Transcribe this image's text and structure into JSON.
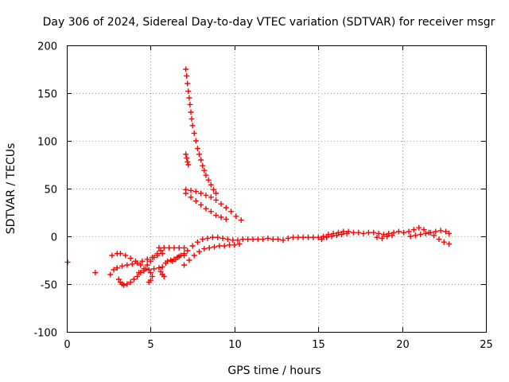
{
  "chart_data": {
    "type": "scatter",
    "title": "Day 306 of 2024, Sidereal Day-to-day VTEC variation (SDTVAR) for receiver msgr",
    "xlabel": "GPS time / hours",
    "ylabel": "SDTVAR / TECUs",
    "xlim": [
      0,
      25
    ],
    "ylim": [
      -100,
      200
    ],
    "xticks": [
      "0",
      "5",
      "10",
      "15",
      "20",
      "25"
    ],
    "yticks": [
      "-100",
      "-50",
      "0",
      "50",
      "100",
      "150",
      "200"
    ],
    "grid": true,
    "marker": "+",
    "series": [
      {
        "name": "SDTVAR",
        "color": "#ff0000",
        "points": [
          [
            0.05,
            -27
          ],
          [
            1.7,
            -38
          ],
          [
            2.6,
            -40
          ],
          [
            2.8,
            -35
          ],
          [
            2.7,
            -20
          ],
          [
            3.0,
            -18
          ],
          [
            3.1,
            -45
          ],
          [
            3.2,
            -48
          ],
          [
            3.3,
            -50
          ],
          [
            3.4,
            -51
          ],
          [
            3.6,
            -50
          ],
          [
            3.8,
            -48
          ],
          [
            4.0,
            -45
          ],
          [
            4.2,
            -42
          ],
          [
            4.4,
            -38
          ],
          [
            4.6,
            -34
          ],
          [
            4.8,
            -30
          ],
          [
            5.0,
            -26
          ],
          [
            5.2,
            -22
          ],
          [
            5.4,
            -18
          ],
          [
            5.6,
            -15
          ],
          [
            3.0,
            -33
          ],
          [
            3.3,
            -31
          ],
          [
            3.6,
            -30
          ],
          [
            3.9,
            -29
          ],
          [
            4.2,
            -28
          ],
          [
            4.5,
            -26
          ],
          [
            4.8,
            -24
          ],
          [
            5.1,
            -22
          ],
          [
            5.4,
            -20
          ],
          [
            5.7,
            -18
          ],
          [
            3.2,
            -18
          ],
          [
            3.5,
            -20
          ],
          [
            3.8,
            -23
          ],
          [
            4.1,
            -26
          ],
          [
            4.4,
            -30
          ],
          [
            4.7,
            -34
          ],
          [
            5.0,
            -38
          ],
          [
            5.1,
            -42
          ],
          [
            5.0,
            -46
          ],
          [
            4.9,
            -48
          ],
          [
            4.3,
            -38
          ],
          [
            4.6,
            -36
          ],
          [
            4.9,
            -35
          ],
          [
            5.2,
            -34
          ],
          [
            5.5,
            -33
          ],
          [
            5.7,
            -32
          ],
          [
            5.6,
            -37
          ],
          [
            5.7,
            -40
          ],
          [
            5.8,
            -42
          ],
          [
            5.9,
            -28
          ],
          [
            6.0,
            -26
          ],
          [
            6.2,
            -25
          ],
          [
            6.4,
            -24
          ],
          [
            6.6,
            -22
          ],
          [
            6.8,
            -20
          ],
          [
            7.0,
            -18
          ],
          [
            5.5,
            -12
          ],
          [
            5.8,
            -12
          ],
          [
            6.1,
            -12
          ],
          [
            6.4,
            -12
          ],
          [
            6.7,
            -12
          ],
          [
            7.0,
            -12
          ],
          [
            6.3,
            -26
          ],
          [
            6.5,
            -24
          ],
          [
            6.7,
            -21
          ],
          [
            7.1,
            175
          ],
          [
            7.15,
            168
          ],
          [
            7.2,
            160
          ],
          [
            7.25,
            152
          ],
          [
            7.3,
            145
          ],
          [
            7.35,
            138
          ],
          [
            7.4,
            130
          ],
          [
            7.45,
            123
          ],
          [
            7.5,
            116
          ],
          [
            7.6,
            108
          ],
          [
            7.7,
            100
          ],
          [
            7.8,
            92
          ],
          [
            7.9,
            86
          ],
          [
            8.0,
            80
          ],
          [
            8.1,
            74
          ],
          [
            8.2,
            69
          ],
          [
            8.3,
            64
          ],
          [
            8.45,
            59
          ],
          [
            8.6,
            54
          ],
          [
            8.75,
            49
          ],
          [
            8.9,
            45
          ],
          [
            7.1,
            86
          ],
          [
            7.15,
            82
          ],
          [
            7.2,
            78
          ],
          [
            7.25,
            75
          ],
          [
            7.1,
            49
          ],
          [
            7.4,
            48
          ],
          [
            7.7,
            47
          ],
          [
            8.0,
            45
          ],
          [
            8.3,
            43
          ],
          [
            8.6,
            41
          ],
          [
            8.9,
            38
          ],
          [
            9.2,
            34
          ],
          [
            9.5,
            30
          ],
          [
            9.8,
            26
          ],
          [
            10.1,
            21
          ],
          [
            10.4,
            17
          ],
          [
            7.1,
            45
          ],
          [
            7.4,
            41
          ],
          [
            7.7,
            37
          ],
          [
            8.0,
            33
          ],
          [
            8.3,
            29
          ],
          [
            8.6,
            26
          ],
          [
            8.9,
            22
          ],
          [
            9.2,
            20
          ],
          [
            9.5,
            18
          ],
          [
            7.0,
            -30
          ],
          [
            7.3,
            -25
          ],
          [
            7.6,
            -20
          ],
          [
            7.9,
            -16
          ],
          [
            8.2,
            -13
          ],
          [
            8.5,
            -12
          ],
          [
            8.8,
            -11
          ],
          [
            9.1,
            -10
          ],
          [
            9.4,
            -10
          ],
          [
            9.7,
            -9
          ],
          [
            10.0,
            -9
          ],
          [
            10.3,
            -8
          ],
          [
            7.0,
            -20
          ],
          [
            7.2,
            -15
          ],
          [
            7.5,
            -10
          ],
          [
            7.8,
            -6
          ],
          [
            8.1,
            -3
          ],
          [
            8.4,
            -2
          ],
          [
            8.7,
            -1
          ],
          [
            9.0,
            -1
          ],
          [
            9.3,
            -2
          ],
          [
            9.6,
            -3
          ],
          [
            9.9,
            -4
          ],
          [
            10.2,
            -4
          ],
          [
            10.5,
            -3
          ],
          [
            10.8,
            -3
          ],
          [
            11.1,
            -3
          ],
          [
            11.4,
            -3
          ],
          [
            11.7,
            -3
          ],
          [
            12.0,
            -2
          ],
          [
            12.3,
            -3
          ],
          [
            12.6,
            -3
          ],
          [
            12.9,
            -4
          ],
          [
            13.2,
            -2
          ],
          [
            13.5,
            -1
          ],
          [
            13.8,
            -1
          ],
          [
            14.1,
            -1
          ],
          [
            14.4,
            -1
          ],
          [
            14.7,
            -1
          ],
          [
            15.0,
            -1
          ],
          [
            15.3,
            0
          ],
          [
            15.6,
            2
          ],
          [
            15.9,
            3
          ],
          [
            16.2,
            4
          ],
          [
            16.5,
            5
          ],
          [
            16.8,
            5
          ],
          [
            17.1,
            4
          ],
          [
            17.4,
            4
          ],
          [
            17.7,
            3
          ],
          [
            18.0,
            4
          ],
          [
            18.3,
            4
          ],
          [
            18.6,
            3
          ],
          [
            18.9,
            2
          ],
          [
            19.2,
            3
          ],
          [
            19.5,
            4
          ],
          [
            19.8,
            5
          ],
          [
            20.1,
            4
          ],
          [
            20.4,
            5
          ],
          [
            20.7,
            7
          ],
          [
            21.0,
            9
          ],
          [
            21.3,
            7
          ],
          [
            21.6,
            4
          ],
          [
            21.9,
            1
          ],
          [
            22.2,
            -3
          ],
          [
            22.5,
            -6
          ],
          [
            22.8,
            -8
          ],
          [
            15.2,
            -3
          ],
          [
            15.5,
            -1
          ],
          [
            15.8,
            0
          ],
          [
            16.1,
            1
          ],
          [
            16.4,
            2
          ],
          [
            16.7,
            3
          ],
          [
            18.5,
            -1
          ],
          [
            18.8,
            -2
          ],
          [
            19.1,
            0
          ],
          [
            19.4,
            1
          ],
          [
            20.5,
            0
          ],
          [
            20.8,
            1
          ],
          [
            21.1,
            2
          ],
          [
            21.4,
            3
          ],
          [
            21.7,
            4
          ],
          [
            22.0,
            5
          ],
          [
            22.3,
            6
          ],
          [
            22.6,
            5
          ],
          [
            22.8,
            3
          ]
        ]
      }
    ]
  }
}
